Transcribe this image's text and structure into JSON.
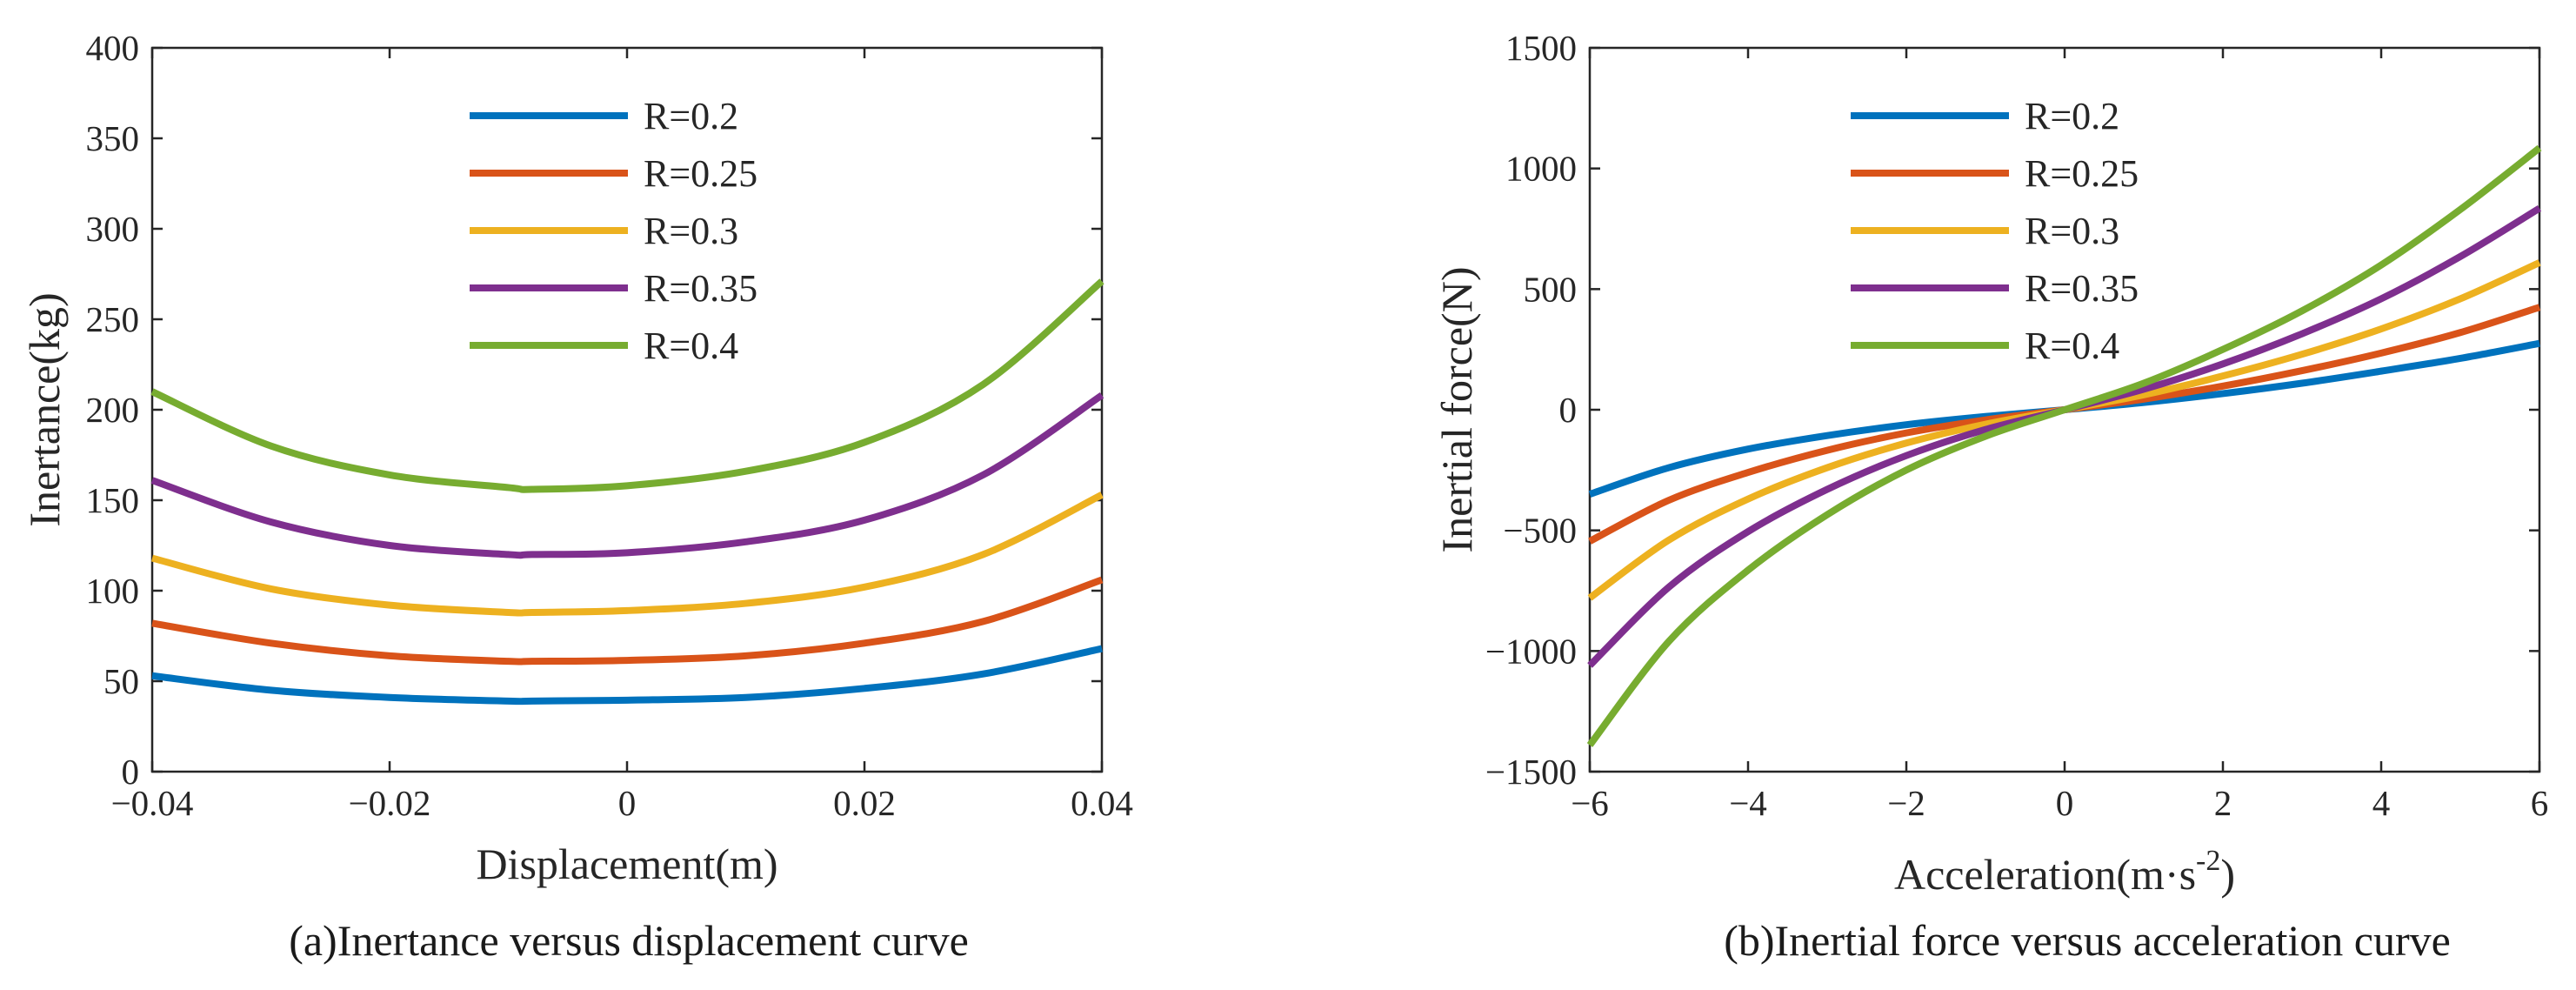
{
  "chart_data": [
    {
      "type": "line",
      "title": "",
      "caption": "(a)Inertance versus displacement curve",
      "xlabel": "Displacement(m)",
      "ylabel": "Inertance(kg)",
      "xlim": [
        -0.04,
        0.04
      ],
      "ylim": [
        0,
        400
      ],
      "xticks": [
        -0.04,
        -0.02,
        0,
        0.02,
        0.04
      ],
      "xtick_labels": [
        "−0.04",
        "−0.02",
        "0",
        "0.02",
        "0.04"
      ],
      "yticks": [
        0,
        50,
        100,
        150,
        200,
        250,
        300,
        350,
        400
      ],
      "ytick_labels": [
        "0",
        "50",
        "100",
        "150",
        "200",
        "250",
        "300",
        "350",
        "400"
      ],
      "legend_position": "top-center",
      "x": [
        -0.04,
        -0.03,
        -0.02,
        -0.01,
        -0.008,
        0,
        0.01,
        0.02,
        0.03,
        0.04
      ],
      "series": [
        {
          "name": "R=0.2",
          "color": "#0072BD",
          "values": [
            53,
            45,
            41,
            39,
            39,
            39.5,
            41,
            46,
            54,
            68
          ]
        },
        {
          "name": "R=0.25",
          "color": "#D95319",
          "values": [
            82,
            71,
            64,
            61,
            61,
            61.5,
            64,
            71,
            83,
            106
          ]
        },
        {
          "name": "R=0.3",
          "color": "#EDB120",
          "values": [
            118,
            101,
            92,
            88,
            88,
            89,
            93,
            102,
            120,
            153
          ]
        },
        {
          "name": "R=0.35",
          "color": "#7E2F8E",
          "values": [
            161,
            138,
            125,
            120,
            120,
            121,
            127,
            139,
            164,
            208
          ]
        },
        {
          "name": "R=0.4",
          "color": "#77AC30",
          "values": [
            210,
            180,
            164,
            157,
            156,
            158,
            166,
            182,
            214,
            271
          ]
        }
      ]
    },
    {
      "type": "line",
      "title": "",
      "caption": "(b)Inertial force versus acceleration curve",
      "xlabel": "Acceleration(m·s",
      "xlabel_sup": "-2",
      "xlabel_end": ")",
      "ylabel": "Inertial force(N)",
      "xlim": [
        -6,
        6
      ],
      "ylim": [
        -1500,
        1500
      ],
      "xticks": [
        -6,
        -4,
        -2,
        0,
        2,
        4,
        6
      ],
      "xtick_labels": [
        "−6",
        "−4",
        "−2",
        "0",
        "2",
        "4",
        "6"
      ],
      "yticks": [
        -1500,
        -1000,
        -500,
        0,
        500,
        1000,
        1500
      ],
      "ytick_labels": [
        "−1500",
        "−1000",
        "−500",
        "0",
        "500",
        "1000",
        "1500"
      ],
      "legend_position": "top-center",
      "x": [
        -6,
        -5,
        -4,
        -3,
        -2,
        -1,
        0,
        1,
        2,
        3,
        4,
        5,
        6
      ],
      "series": [
        {
          "name": "R=0.2",
          "color": "#0072BD",
          "values": [
            -350,
            -240,
            -163,
            -107,
            -62,
            -28,
            0,
            30,
            67,
            110,
            160,
            213,
            275
          ]
        },
        {
          "name": "R=0.25",
          "color": "#D95319",
          "values": [
            -545,
            -375,
            -260,
            -168,
            -96,
            -42,
            0,
            44,
            98,
            162,
            235,
            320,
            425
          ]
        },
        {
          "name": "R=0.3",
          "color": "#EDB120",
          "values": [
            -780,
            -540,
            -370,
            -240,
            -138,
            -60,
            0,
            62,
            140,
            230,
            335,
            460,
            610
          ]
        },
        {
          "name": "R=0.35",
          "color": "#7E2F8E",
          "values": [
            -1060,
            -735,
            -505,
            -330,
            -190,
            -82,
            0,
            85,
            190,
            315,
            460,
            635,
            835
          ]
        },
        {
          "name": "R=0.4",
          "color": "#77AC30",
          "values": [
            -1390,
            -960,
            -665,
            -435,
            -250,
            -110,
            0,
            110,
            250,
            410,
            600,
            830,
            1085
          ]
        }
      ]
    }
  ]
}
